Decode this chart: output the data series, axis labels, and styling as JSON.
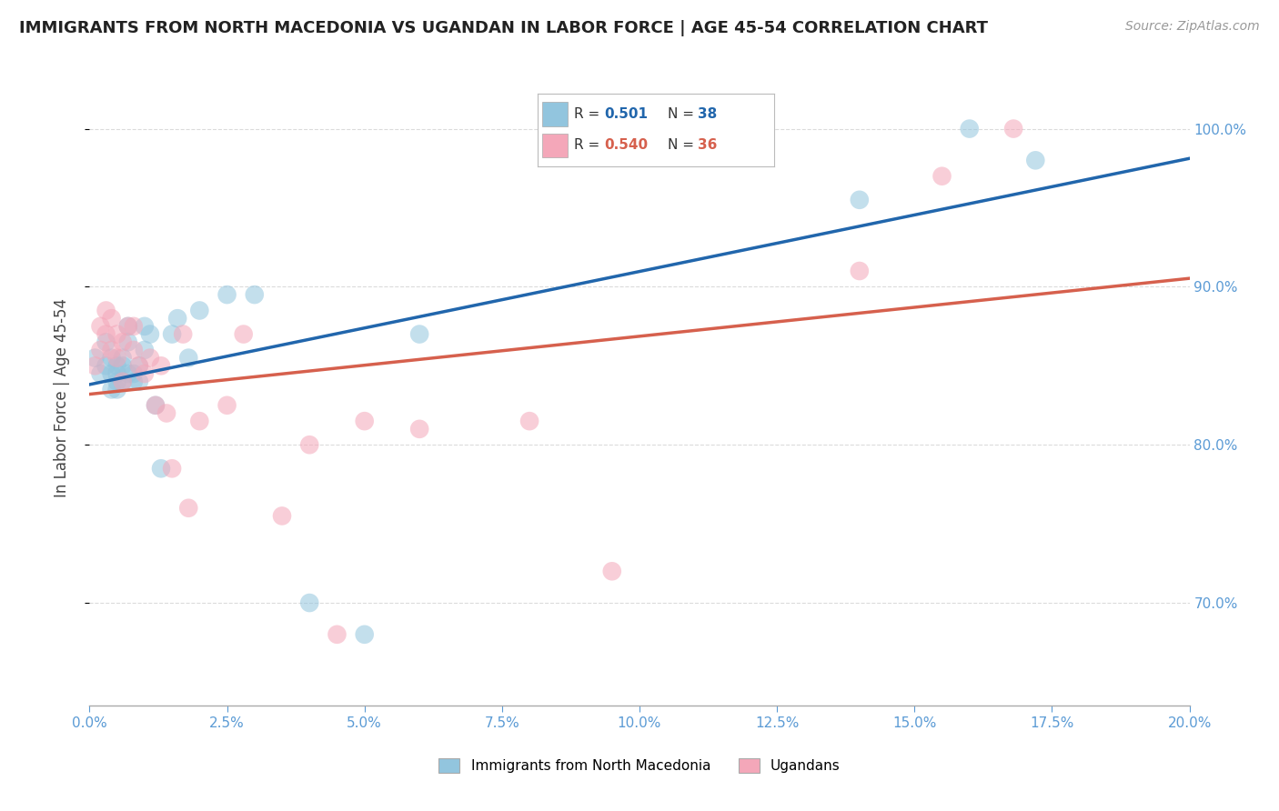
{
  "title": "IMMIGRANTS FROM NORTH MACEDONIA VS UGANDAN IN LABOR FORCE | AGE 45-54 CORRELATION CHART",
  "source": "Source: ZipAtlas.com",
  "ylabel": "In Labor Force | Age 45-54",
  "legend_label_1": "Immigrants from North Macedonia",
  "legend_label_2": "Ugandans",
  "R1": 0.501,
  "N1": 38,
  "R2": 0.54,
  "N2": 36,
  "color_blue": "#92c5de",
  "color_pink": "#f4a7b9",
  "line_color_blue": "#2166ac",
  "line_color_pink": "#d6604d",
  "background_color": "#ffffff",
  "grid_color": "#cccccc",
  "xlim": [
    0.0,
    0.2
  ],
  "ylim": [
    0.635,
    1.025
  ],
  "north_macedonia_x": [
    0.001,
    0.002,
    0.003,
    0.003,
    0.004,
    0.004,
    0.004,
    0.005,
    0.005,
    0.005,
    0.005,
    0.006,
    0.006,
    0.006,
    0.007,
    0.007,
    0.007,
    0.008,
    0.008,
    0.009,
    0.009,
    0.01,
    0.01,
    0.011,
    0.012,
    0.013,
    0.015,
    0.016,
    0.018,
    0.02,
    0.025,
    0.03,
    0.04,
    0.05,
    0.06,
    0.14,
    0.16,
    0.172
  ],
  "north_macedonia_y": [
    0.855,
    0.845,
    0.865,
    0.85,
    0.855,
    0.845,
    0.835,
    0.85,
    0.84,
    0.835,
    0.845,
    0.84,
    0.85,
    0.855,
    0.875,
    0.865,
    0.845,
    0.84,
    0.845,
    0.85,
    0.84,
    0.875,
    0.86,
    0.87,
    0.825,
    0.785,
    0.87,
    0.88,
    0.855,
    0.885,
    0.895,
    0.895,
    0.7,
    0.68,
    0.87,
    0.955,
    1.0,
    0.98
  ],
  "ugandans_x": [
    0.001,
    0.002,
    0.002,
    0.003,
    0.003,
    0.004,
    0.004,
    0.005,
    0.005,
    0.006,
    0.006,
    0.007,
    0.008,
    0.008,
    0.009,
    0.01,
    0.011,
    0.012,
    0.013,
    0.014,
    0.015,
    0.017,
    0.018,
    0.02,
    0.025,
    0.028,
    0.035,
    0.04,
    0.045,
    0.05,
    0.06,
    0.08,
    0.095,
    0.14,
    0.155,
    0.168
  ],
  "ugandans_y": [
    0.85,
    0.875,
    0.86,
    0.885,
    0.87,
    0.88,
    0.86,
    0.87,
    0.855,
    0.865,
    0.84,
    0.875,
    0.875,
    0.86,
    0.85,
    0.845,
    0.855,
    0.825,
    0.85,
    0.82,
    0.785,
    0.87,
    0.76,
    0.815,
    0.825,
    0.87,
    0.755,
    0.8,
    0.68,
    0.815,
    0.81,
    0.815,
    0.72,
    0.91,
    0.97,
    1.0
  ]
}
